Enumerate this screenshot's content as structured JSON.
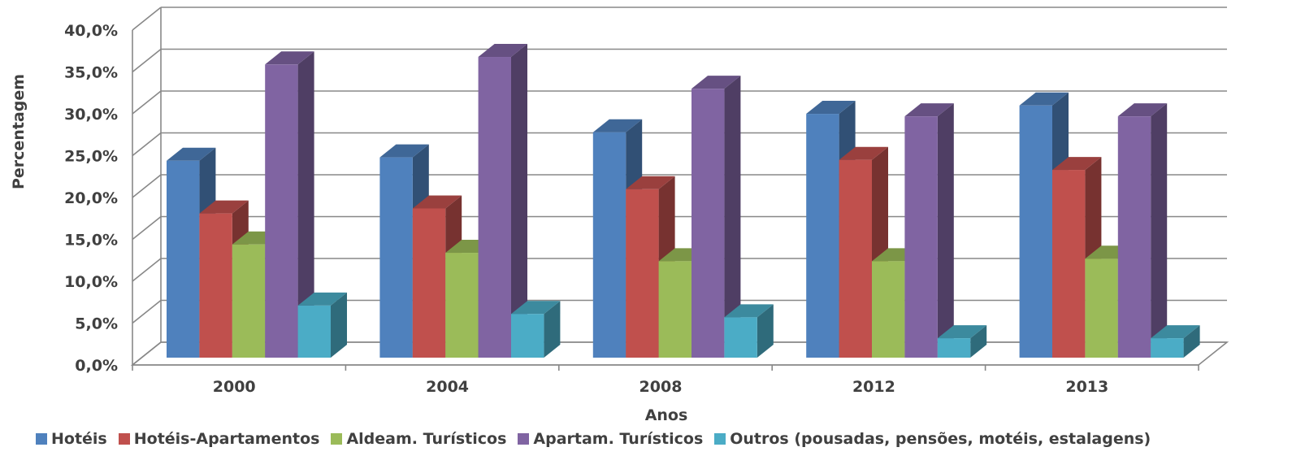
{
  "chart_data": {
    "type": "bar",
    "categories": [
      "2000",
      "2004",
      "2008",
      "2012",
      "2013"
    ],
    "series": [
      {
        "name": "Hotéis",
        "values": [
          24.2,
          24.6,
          27.6,
          29.8,
          30.8
        ],
        "color": "#4F81BD"
      },
      {
        "name": "Hotéis-Apartamentos",
        "values": [
          17.9,
          18.5,
          20.8,
          24.3,
          23.1
        ],
        "color": "#C0504D"
      },
      {
        "name": "Aldeam. Turísticos",
        "values": [
          14.2,
          13.2,
          12.2,
          12.2,
          12.5
        ],
        "color": "#9BBB59"
      },
      {
        "name": "Apartam. Turísticos",
        "values": [
          35.7,
          36.6,
          32.8,
          29.5,
          29.5
        ],
        "color": "#8064A2"
      },
      {
        "name": "Outros (pousadas, pensões, motéis, estalagens)",
        "values": [
          6.9,
          5.9,
          5.5,
          3.0,
          3.0
        ],
        "color": "#4BACC6"
      }
    ],
    "xlabel": "Anos",
    "ylabel": "Percentagem",
    "ylim": [
      0,
      40
    ],
    "yticks": [
      "0,0%",
      "5,0%",
      "10,0%",
      "15,0%",
      "20,0%",
      "25,0%",
      "30,0%",
      "35,0%",
      "40,0%"
    ],
    "grid": true,
    "legend_position": "bottom",
    "style": "3d-column"
  }
}
